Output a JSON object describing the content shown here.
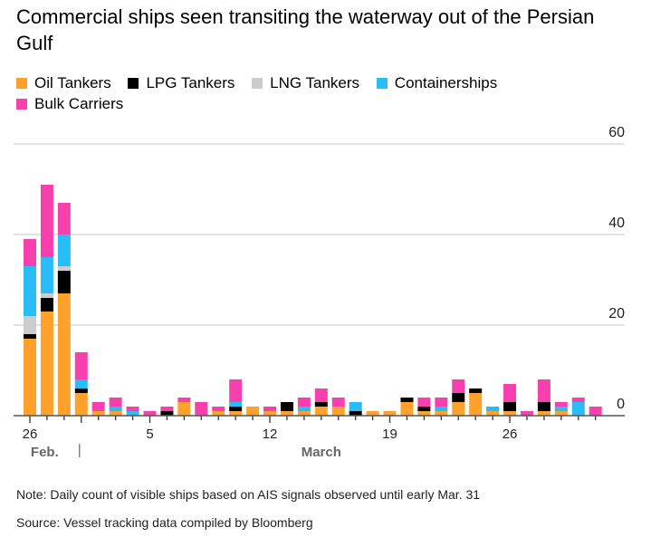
{
  "chart_data": {
    "type": "bar",
    "stacked": true,
    "title": "Commercial ships seen transiting the waterway out of the Persian Gulf",
    "categories": [
      "Feb 26",
      "Feb 27",
      "Feb 28",
      "Mar 1",
      "Mar 2",
      "Mar 3",
      "Mar 4",
      "Mar 5",
      "Mar 6",
      "Mar 7",
      "Mar 8",
      "Mar 9",
      "Mar 10",
      "Mar 11",
      "Mar 12",
      "Mar 13",
      "Mar 14",
      "Mar 15",
      "Mar 16",
      "Mar 17",
      "Mar 18",
      "Mar 19",
      "Mar 20",
      "Mar 21",
      "Mar 22",
      "Mar 23",
      "Mar 24",
      "Mar 25",
      "Mar 26",
      "Mar 27",
      "Mar 28",
      "Mar 29",
      "Mar 30",
      "Mar 31"
    ],
    "series": [
      {
        "name": "Oil Tankers",
        "color": "#ffa12b",
        "values": [
          17,
          23,
          27,
          5,
          1,
          1,
          0,
          0,
          0,
          3,
          0,
          1,
          1,
          2,
          1,
          1,
          1,
          2,
          2,
          0,
          1,
          1,
          3,
          1,
          1,
          3,
          5,
          1,
          1,
          0,
          1,
          1,
          0,
          0
        ]
      },
      {
        "name": "LPG Tankers",
        "color": "#000000",
        "values": [
          1,
          3,
          5,
          1,
          0,
          0,
          0,
          0,
          1,
          0,
          0,
          0,
          1,
          0,
          0,
          2,
          0,
          1,
          0,
          1,
          0,
          0,
          1,
          1,
          0,
          2,
          1,
          0,
          2,
          0,
          2,
          0,
          0,
          0
        ]
      },
      {
        "name": "LNG Tankers",
        "color": "#cccccc",
        "values": [
          4,
          1,
          1,
          0,
          0,
          0,
          0,
          0,
          0,
          0,
          0,
          0,
          0,
          0,
          0,
          0,
          0,
          0,
          0,
          0,
          0,
          0,
          0,
          0,
          0,
          0,
          0,
          0,
          0,
          0,
          0,
          0,
          0,
          0
        ]
      },
      {
        "name": "Containerships",
        "color": "#29bdf7",
        "values": [
          11,
          8,
          7,
          2,
          0,
          1,
          1,
          0,
          0,
          0,
          0,
          0,
          1,
          0,
          0,
          0,
          1,
          0,
          0,
          2,
          0,
          0,
          0,
          0,
          1,
          0,
          0,
          1,
          0,
          0,
          0,
          1,
          3,
          0
        ]
      },
      {
        "name": "Bulk Carriers",
        "color": "#f73fad",
        "values": [
          6,
          16,
          7,
          6,
          2,
          2,
          1,
          1,
          1,
          1,
          3,
          1,
          5,
          0,
          1,
          0,
          2,
          3,
          2,
          0,
          0,
          0,
          0,
          2,
          2,
          3,
          0,
          0,
          4,
          1,
          5,
          1,
          1,
          2
        ]
      }
    ],
    "ylim": [
      0,
      60
    ],
    "yticks": [
      "0",
      "20",
      "40",
      "60"
    ],
    "xtick_labels": [
      {
        "index": 0,
        "label": "26"
      },
      {
        "index": 7,
        "label": "5"
      },
      {
        "index": 14,
        "label": "12"
      },
      {
        "index": 21,
        "label": "19"
      },
      {
        "index": 28,
        "label": "26"
      }
    ],
    "month_labels": [
      {
        "index": 1,
        "label": "Feb."
      },
      {
        "index": 17,
        "label": "March"
      }
    ],
    "grid": true,
    "legend_position": "top-left"
  },
  "footer": {
    "note": "Note: Daily count of visible ships based on AIS signals observed until early Mar. 31",
    "source": "Source: Vessel tracking data compiled by Bloomberg"
  }
}
